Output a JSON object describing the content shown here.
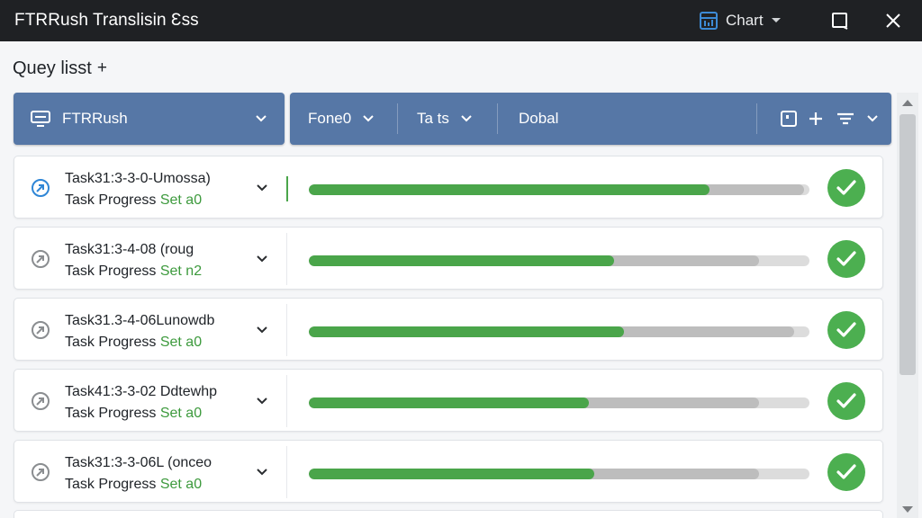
{
  "window": {
    "title": "FTRRush Translisin Ɛss",
    "chart_label": "Chart",
    "controls": [
      "maximize-icon",
      "close-icon"
    ]
  },
  "section": {
    "title": "Quey lisst",
    "add_symbol": "+"
  },
  "filters": {
    "left": {
      "icon": "monitor-icon",
      "label": "FTRRush"
    },
    "right": [
      {
        "label": "Fone0"
      },
      {
        "label": "Ta ts"
      },
      {
        "label": "Dobal"
      }
    ],
    "actions": [
      "stop-square-icon",
      "plus-icon",
      "filter-icon",
      "chevron-down-icon"
    ]
  },
  "colors": {
    "accent_bar": "#5677a6",
    "success": "#4caf50",
    "progress": "#4aa54a",
    "titlebar": "#1f2124"
  },
  "rows": [
    {
      "name": "Task31:3-3-0-Umossa)",
      "sub_label": "Task Progress",
      "set_label": "Set",
      "set_value": "a0",
      "status_icon": "active-arrow-icon",
      "progress": 0.8,
      "secondary": 0.99,
      "complete": true
    },
    {
      "name": "Task31:3-4-08 (roug",
      "sub_label": "Task Progress",
      "set_label": "Set",
      "set_value": "n2",
      "status_icon": "pending-arrow-icon",
      "progress": 0.61,
      "secondary": 0.9,
      "complete": true
    },
    {
      "name": "Task31.3-4-06Lunowdb",
      "sub_label": "Task Progress",
      "set_label": "Set",
      "set_value": "a0",
      "status_icon": "pending-arrow-icon",
      "progress": 0.63,
      "secondary": 0.97,
      "complete": true
    },
    {
      "name": "Task41:3-3-02 Ddtewhp",
      "sub_label": "Task Progress",
      "set_label": "Set",
      "set_value": "a0",
      "status_icon": "pending-arrow-icon",
      "progress": 0.56,
      "secondary": 0.9,
      "complete": true
    },
    {
      "name": "Task31:3-3-06L (onceo",
      "sub_label": "Task Progress",
      "set_label": "Set",
      "set_value": "a0",
      "status_icon": "pending-arrow-icon",
      "progress": 0.57,
      "secondary": 0.9,
      "complete": true
    }
  ]
}
